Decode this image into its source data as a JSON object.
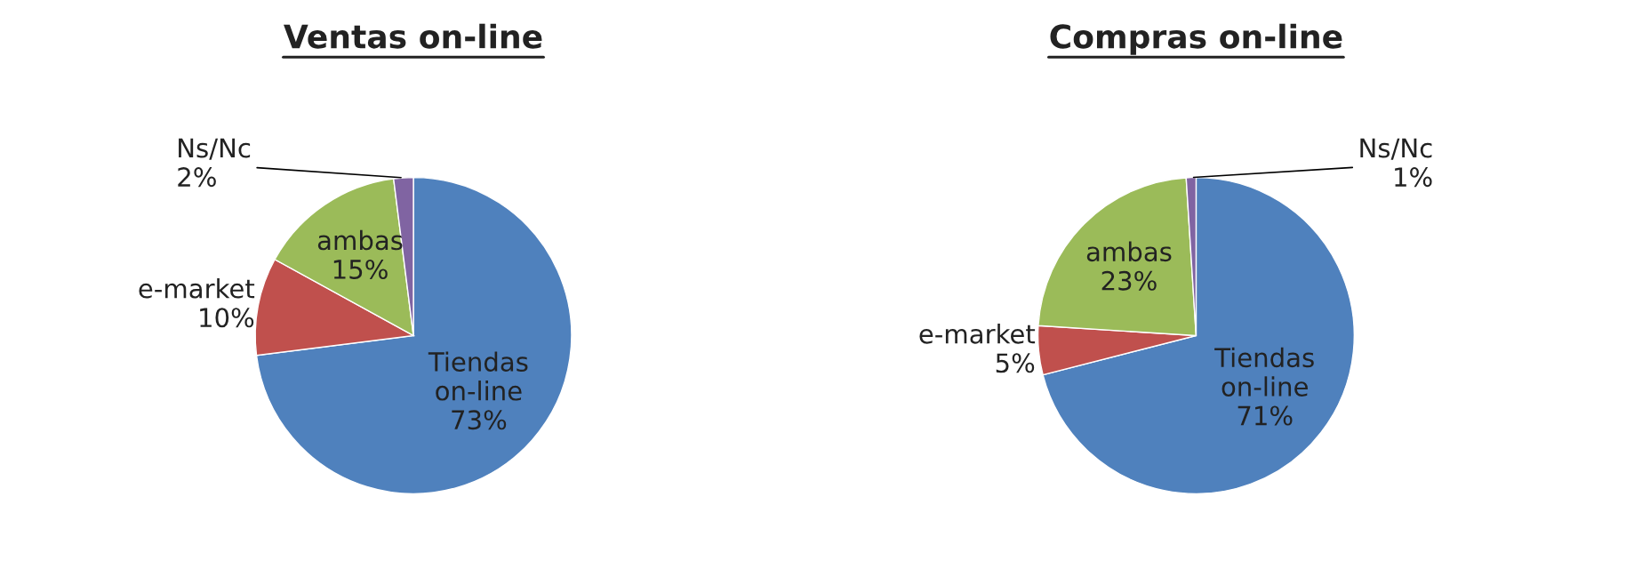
{
  "chart_data": [
    {
      "type": "pie",
      "title": "Ventas on-line",
      "categories": [
        "Tiendas on-line",
        "e-market",
        "ambas",
        "Ns/Nc"
      ],
      "values": [
        73,
        10,
        15,
        2
      ],
      "value_labels": [
        "73%",
        "10%",
        "15%",
        "2%"
      ],
      "colors": [
        "#4f81bd",
        "#c0504d",
        "#9bbb59",
        "#8064a2"
      ]
    },
    {
      "type": "pie",
      "title": "Compras on-line",
      "categories": [
        "Tiendas on-line",
        "e-market",
        "ambas",
        "Ns/Nc"
      ],
      "values": [
        71,
        5,
        23,
        1
      ],
      "value_labels": [
        "71%",
        "5%",
        "23%",
        "1%"
      ],
      "colors": [
        "#4f81bd",
        "#c0504d",
        "#9bbb59",
        "#8064a2"
      ]
    }
  ]
}
